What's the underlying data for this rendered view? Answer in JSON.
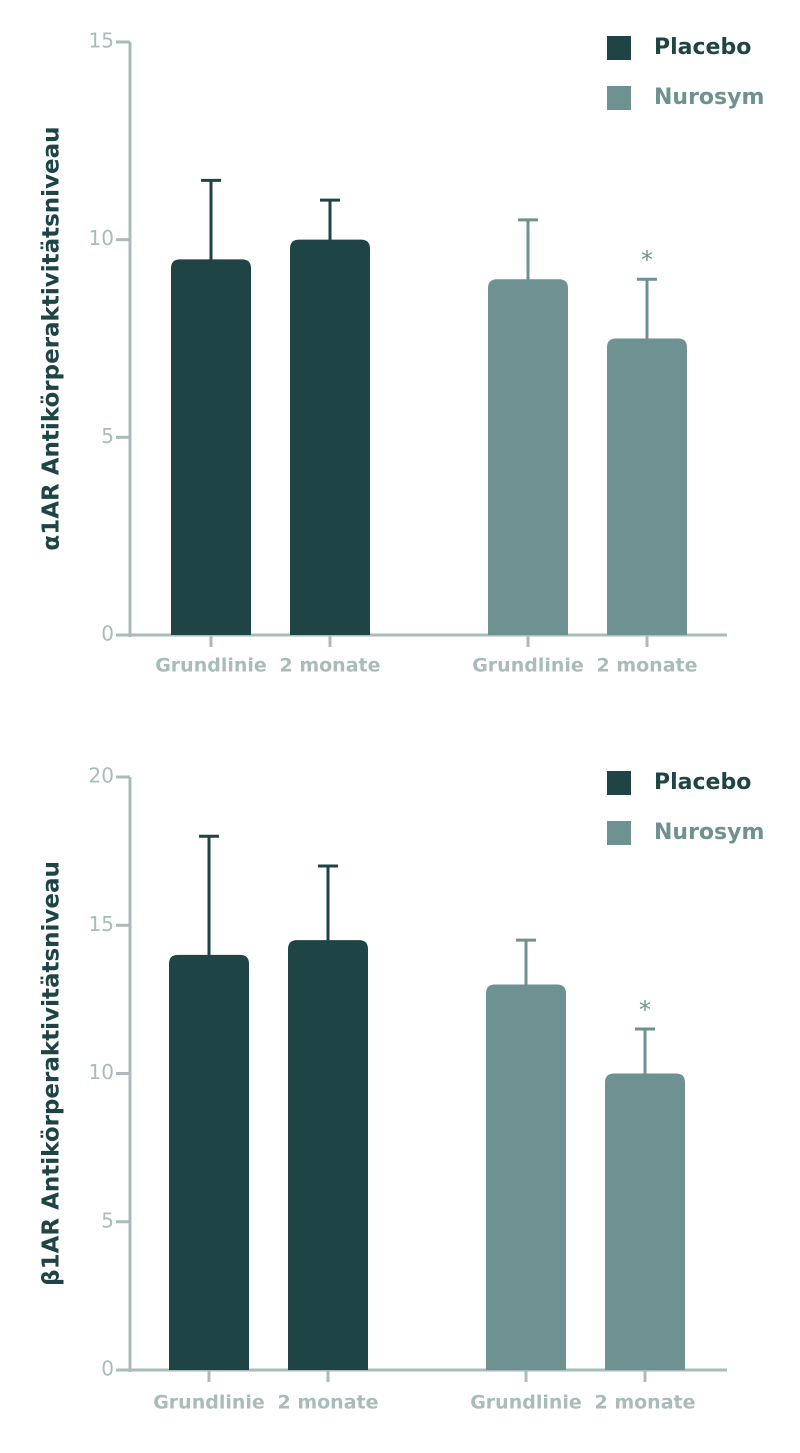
{
  "colors": {
    "placebo": "#1e4446",
    "nurosym": "#6e9192",
    "axis": "#a9bcb9",
    "tick_text": "#a9bcb9"
  },
  "chart_data": [
    {
      "type": "bar",
      "ylabel": "α1AR Antikörperaktivitätsniveau",
      "ylim": [
        0,
        15
      ],
      "yticks": [
        0,
        5,
        10,
        15
      ],
      "legend": {
        "placement": "top-right",
        "entries": [
          "Placebo",
          "Nurosym"
        ]
      },
      "groups": [
        {
          "series": "Placebo",
          "bars": [
            {
              "label": "Grundlinie",
              "value": 9.5,
              "error": 2.0,
              "significant": false
            },
            {
              "label": "2 monate",
              "value": 10.0,
              "error": 1.0,
              "significant": false
            }
          ]
        },
        {
          "series": "Nurosym",
          "bars": [
            {
              "label": "Grundlinie",
              "value": 9.0,
              "error": 1.5,
              "significant": false
            },
            {
              "label": "2 monate",
              "value": 7.5,
              "error": 1.5,
              "significant": true
            }
          ]
        }
      ],
      "annotation": "*"
    },
    {
      "type": "bar",
      "ylabel": "β1AR Antikörperaktivitätsniveau",
      "ylim": [
        0,
        20
      ],
      "yticks": [
        0,
        5,
        10,
        15,
        20
      ],
      "legend": {
        "placement": "top-right",
        "entries": [
          "Placebo",
          "Nurosym"
        ]
      },
      "groups": [
        {
          "series": "Placebo",
          "bars": [
            {
              "label": "Grundlinie",
              "value": 14.0,
              "error": 4.0,
              "significant": false
            },
            {
              "label": "2 monate",
              "value": 14.5,
              "error": 2.5,
              "significant": false
            }
          ]
        },
        {
          "series": "Nurosym",
          "bars": [
            {
              "label": "Grundlinie",
              "value": 13.0,
              "error": 1.5,
              "significant": false
            },
            {
              "label": "2 monate",
              "value": 10.0,
              "error": 1.5,
              "significant": true
            }
          ]
        }
      ],
      "annotation": "*"
    }
  ]
}
